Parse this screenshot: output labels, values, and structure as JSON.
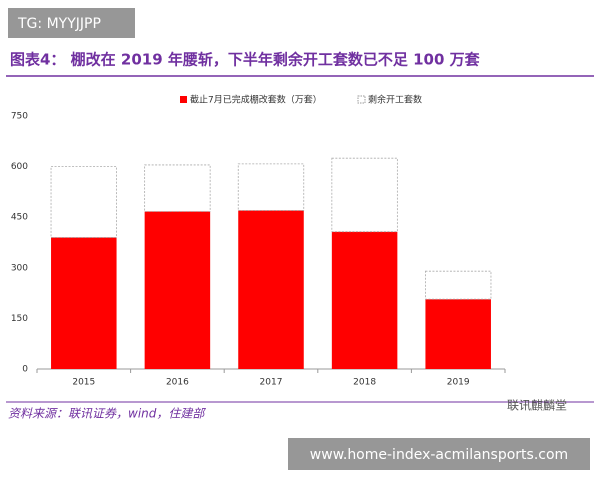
{
  "badge": "TG: MYYJJPP",
  "chart_data": {
    "type": "stacked-bar",
    "title": "图表4： 棚改在 2019 年腰斩，下半年剩余开工套数已不足 100 万套",
    "categories": [
      "2015",
      "2016",
      "2017",
      "2018",
      "2019"
    ],
    "series": [
      {
        "name": "截止7月已完成棚改套数（万套）",
        "color": "#ff0000",
        "values": [
          390,
          467,
          470,
          407,
          207
        ]
      },
      {
        "name": "剩余开工套数",
        "color": "#ffffff",
        "values": [
          210,
          138,
          138,
          218,
          83
        ]
      }
    ],
    "ylim": [
      0,
      750
    ],
    "yticks": [
      0,
      150,
      300,
      450,
      600,
      750
    ],
    "legend": "top",
    "source": "资料来源：联讯证券，wind，住建部"
  },
  "watermark": "联讯麒麟堂",
  "footer_url": "www.home-index-acmilansports.com"
}
